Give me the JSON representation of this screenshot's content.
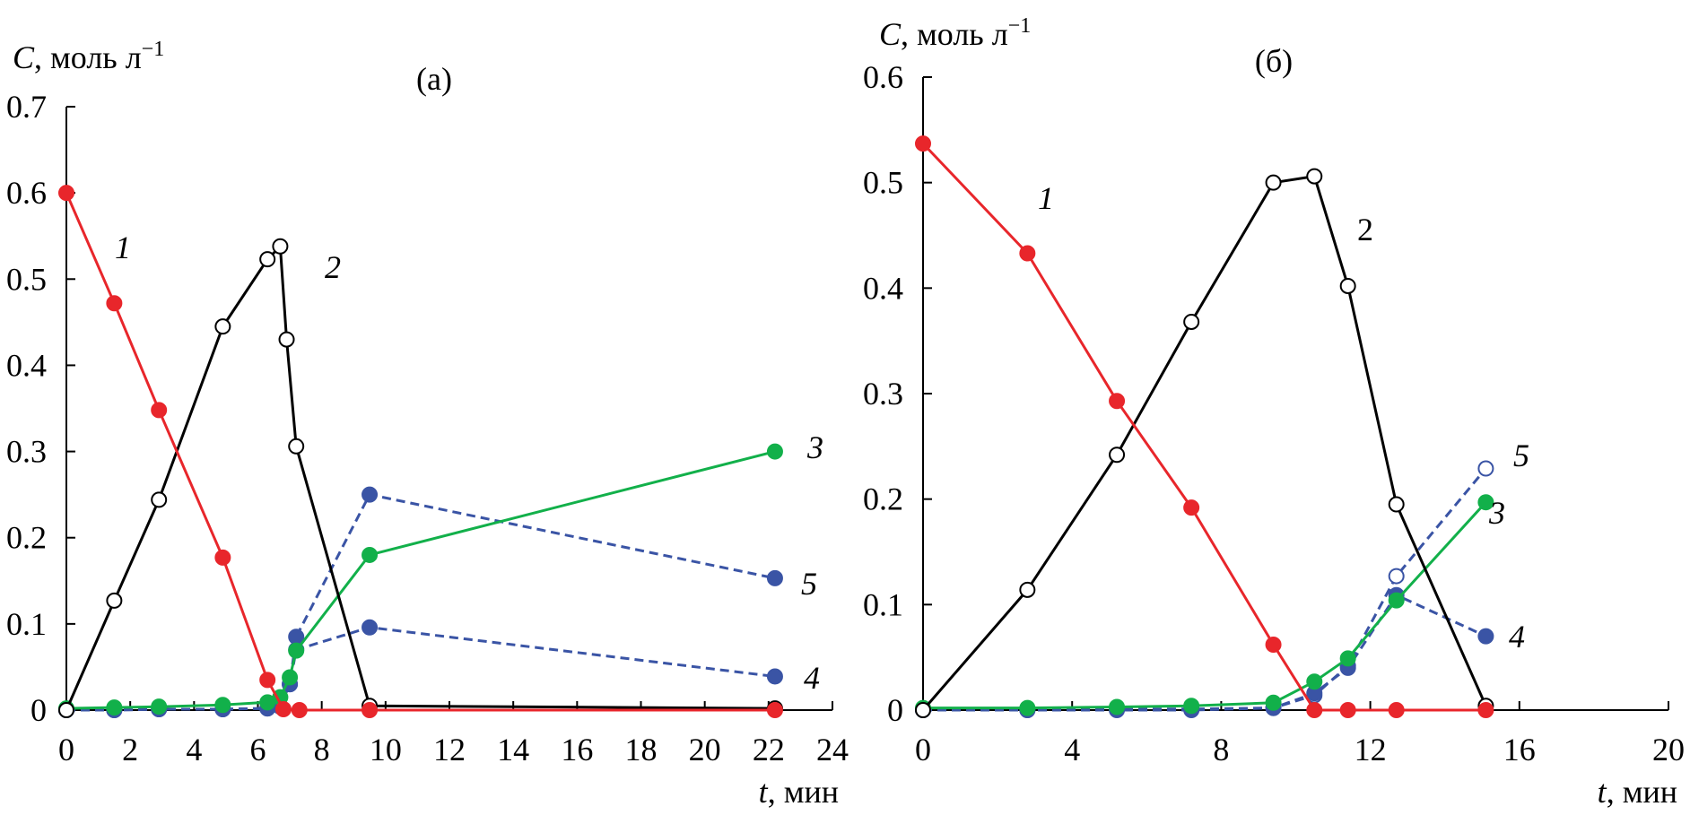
{
  "chart_data": [
    {
      "type": "line",
      "panel_label": "(a)",
      "xlabel": "мин",
      "xlabel_var": "t",
      "ylabel_var": "C",
      "ylabel_unit": "моль л",
      "ylabel_exp": "−1",
      "xlim": [
        0,
        24
      ],
      "ylim": [
        0,
        0.7
      ],
      "xticks": [
        "0",
        "2",
        "4",
        "6",
        "8",
        "10",
        "12",
        "14",
        "16",
        "18",
        "20",
        "22",
        "24"
      ],
      "yticks": [
        "0",
        "0.1",
        "0.2",
        "0.3",
        "0.4",
        "0.5",
        "0.6",
        "0.7"
      ],
      "series": [
        {
          "name": "1",
          "italic": true,
          "color": "#e8262b",
          "dash": false,
          "marker": "filled",
          "x": [
            0,
            1.5,
            2.9,
            4.9,
            6.3,
            6.8,
            7.3,
            9.5,
            22.2
          ],
          "y": [
            0.6,
            0.472,
            0.348,
            0.177,
            0.035,
            0.001,
            0.0,
            0.0,
            0.0
          ]
        },
        {
          "name": "2",
          "italic": true,
          "color": "#000000",
          "dash": false,
          "marker": "open",
          "x": [
            0,
            1.5,
            2.9,
            4.9,
            6.3,
            6.7,
            6.9,
            7.2,
            9.5,
            22.2
          ],
          "y": [
            0.0,
            0.127,
            0.244,
            0.445,
            0.523,
            0.538,
            0.43,
            0.306,
            0.005,
            0.002
          ]
        },
        {
          "name": "3",
          "italic": true,
          "color": "#12b04a",
          "dash": false,
          "marker": "filled",
          "x": [
            0,
            1.5,
            2.9,
            4.9,
            6.3,
            6.7,
            7.0,
            7.2,
            9.5,
            22.2
          ],
          "y": [
            0.002,
            0.003,
            0.004,
            0.006,
            0.009,
            0.015,
            0.038,
            0.069,
            0.18,
            0.3
          ]
        },
        {
          "name": "4",
          "italic": true,
          "color": "#3a54a5",
          "dash": true,
          "marker": "filled",
          "x": [
            0,
            1.5,
            2.9,
            4.9,
            6.3,
            6.7,
            7.0,
            7.2,
            9.5,
            22.2
          ],
          "y": [
            0.0,
            0.0,
            0.001,
            0.001,
            0.002,
            0.004,
            0.03,
            0.07,
            0.096,
            0.039
          ]
        },
        {
          "name": "5",
          "italic": true,
          "color": "#3a54a5",
          "dash": true,
          "marker": "filled",
          "x": [
            0,
            1.5,
            2.9,
            4.9,
            6.3,
            6.7,
            7.0,
            7.2,
            9.5,
            22.2
          ],
          "y": [
            0.0,
            0.0,
            0.001,
            0.001,
            0.002,
            0.004,
            0.03,
            0.085,
            0.25,
            0.153
          ]
        }
      ]
    },
    {
      "type": "line",
      "panel_label": "(б)",
      "xlabel": "мин",
      "xlabel_var": "t",
      "ylabel_var": "C",
      "ylabel_unit": "моль л",
      "ylabel_exp": "−1",
      "xlim": [
        0,
        20
      ],
      "ylim": [
        0,
        0.6
      ],
      "xticks": [
        "0",
        "4",
        "8",
        "12",
        "16",
        "20"
      ],
      "yticks": [
        "0",
        "0.1",
        "0.2",
        "0.3",
        "0.4",
        "0.5",
        "0.6"
      ],
      "series": [
        {
          "name": "1",
          "italic": true,
          "color": "#e8262b",
          "dash": false,
          "marker": "filled",
          "x": [
            0,
            2.8,
            5.2,
            7.2,
            9.4,
            10.5,
            11.4,
            12.7,
            15.1
          ],
          "y": [
            0.537,
            0.433,
            0.293,
            0.192,
            0.062,
            0.0,
            0.0,
            0.0,
            0.0
          ]
        },
        {
          "name": "2",
          "italic": false,
          "color": "#000000",
          "dash": false,
          "marker": "open",
          "x": [
            0,
            2.8,
            5.2,
            7.2,
            9.4,
            10.5,
            11.4,
            12.7,
            15.1
          ],
          "y": [
            0.0,
            0.114,
            0.242,
            0.368,
            0.5,
            0.506,
            0.402,
            0.195,
            0.004
          ]
        },
        {
          "name": "3",
          "italic": true,
          "color": "#12b04a",
          "dash": false,
          "marker": "filled",
          "x": [
            0,
            2.8,
            5.2,
            7.2,
            9.4,
            10.5,
            11.4,
            12.7,
            15.1
          ],
          "y": [
            0.002,
            0.002,
            0.003,
            0.004,
            0.007,
            0.027,
            0.049,
            0.104,
            0.197
          ]
        },
        {
          "name": "4",
          "italic": true,
          "color": "#3a54a5",
          "dash": true,
          "marker": "filled",
          "x": [
            0,
            2.8,
            5.2,
            7.2,
            9.4,
            10.5,
            11.4,
            12.7,
            15.1
          ],
          "y": [
            0.0,
            0.0,
            0.001,
            0.001,
            0.002,
            0.016,
            0.04,
            0.109,
            0.07
          ]
        },
        {
          "name": "5",
          "italic": true,
          "color": "#3a54a5",
          "dash": true,
          "marker": "open",
          "x": [
            0,
            2.8,
            5.2,
            7.2,
            9.4,
            10.5,
            11.4,
            12.7,
            15.1
          ],
          "y": [
            0.0,
            0.0,
            0.0,
            0.0,
            0.002,
            0.014,
            0.042,
            0.127,
            0.229
          ]
        }
      ]
    }
  ]
}
